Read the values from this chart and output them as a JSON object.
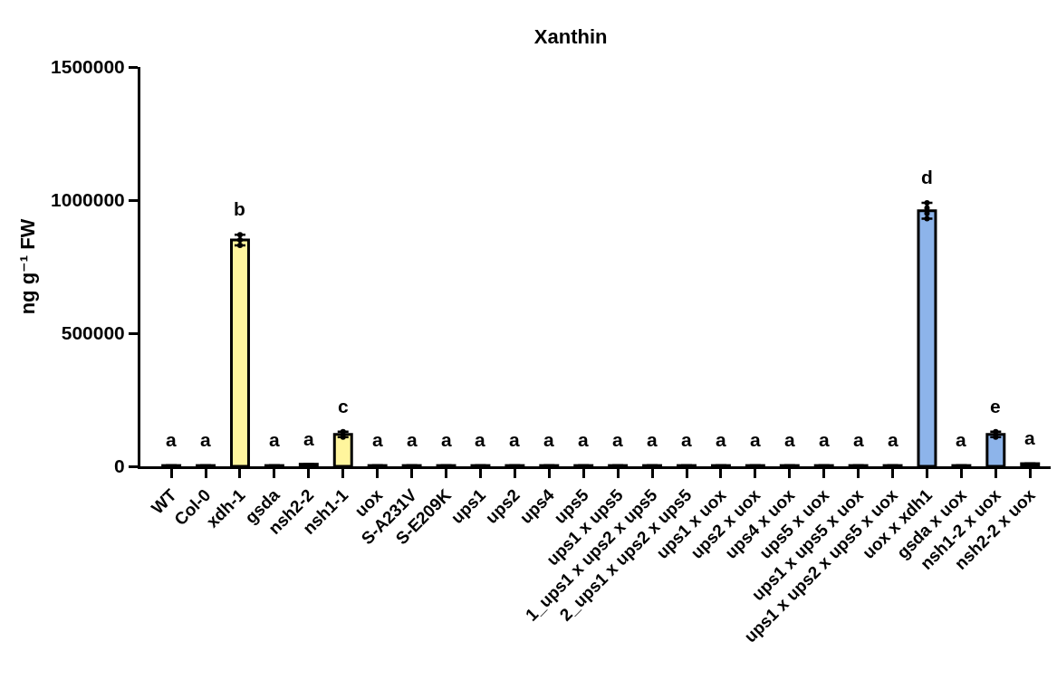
{
  "chart_data": {
    "type": "bar",
    "title": "Xanthin",
    "ylabel": "ng g⁻¹ FW",
    "categories": [
      "WT",
      "Col-0",
      "xdh-1",
      "gsda",
      "nsh2-2",
      "nsh1-1",
      "uox",
      "S-A231V",
      "S-E209K",
      "ups1",
      "ups2",
      "ups4",
      "ups5",
      "ups1 x ups5",
      "1_ups1 x ups2 x ups5",
      "2_ups1 x ups2 x ups5",
      "ups1 x uox",
      "ups2 x uox",
      "ups4 x uox",
      "ups5 x uox",
      "ups1 x ups5 x uox",
      "ups1 x ups2 x ups5 x uox",
      "uox x xdh1",
      "gsda x uox",
      "nsh1-2 x uox",
      "nsh2-2 x uox"
    ],
    "series": [
      {
        "colors": [
          "#ffffff",
          "#ffffff",
          "#fff59d",
          "#ffffff",
          "#ffffff",
          "#fff59d",
          "#ffffff",
          "#ffffff",
          "#ffffff",
          "#ffffff",
          "#ffffff",
          "#ffffff",
          "#ffffff",
          "#ffffff",
          "#ffffff",
          "#ffffff",
          "#ffffff",
          "#ffffff",
          "#ffffff",
          "#ffffff",
          "#ffffff",
          "#ffffff",
          "#8db4ea",
          "#ffffff",
          "#8db4ea",
          "#ffffff"
        ],
        "values": [
          3000,
          3000,
          850000,
          3000,
          8000,
          120000,
          3000,
          3000,
          3000,
          3000,
          3000,
          3000,
          3000,
          3000,
          3000,
          3000,
          3000,
          3000,
          3000,
          3000,
          3000,
          3000,
          960000,
          3000,
          120000,
          10000
        ],
        "errors": [
          null,
          null,
          20000,
          null,
          null,
          10000,
          null,
          null,
          null,
          null,
          null,
          null,
          null,
          null,
          null,
          null,
          null,
          null,
          null,
          null,
          null,
          null,
          30000,
          null,
          10000,
          null
        ],
        "value_labels": [
          "a",
          "a",
          "b",
          "a",
          "a",
          "c",
          "a",
          "a",
          "a",
          "a",
          "a",
          "a",
          "a",
          "a",
          "a",
          "a",
          "a",
          "a",
          "a",
          "a",
          "a",
          "a",
          "d",
          "a",
          "e",
          "a"
        ]
      },
      {
        "type": "scatter",
        "color": "#000000",
        "x": [
          "xdh-1",
          "xdh-1",
          "xdh-1",
          "nsh1-1",
          "nsh1-1",
          "uox x xdh1",
          "uox x xdh1",
          "uox x xdh1",
          "uox x xdh1",
          "nsh1-2 x uox",
          "nsh1-2 x uox"
        ],
        "values": [
          830000,
          850000,
          870000,
          110000,
          130000,
          930000,
          950000,
          970000,
          990000,
          110000,
          130000
        ]
      }
    ],
    "marker": "circle",
    "ylim": [
      0,
      1500000
    ],
    "yticks": [
      0,
      500000,
      1000000,
      1500000
    ]
  }
}
